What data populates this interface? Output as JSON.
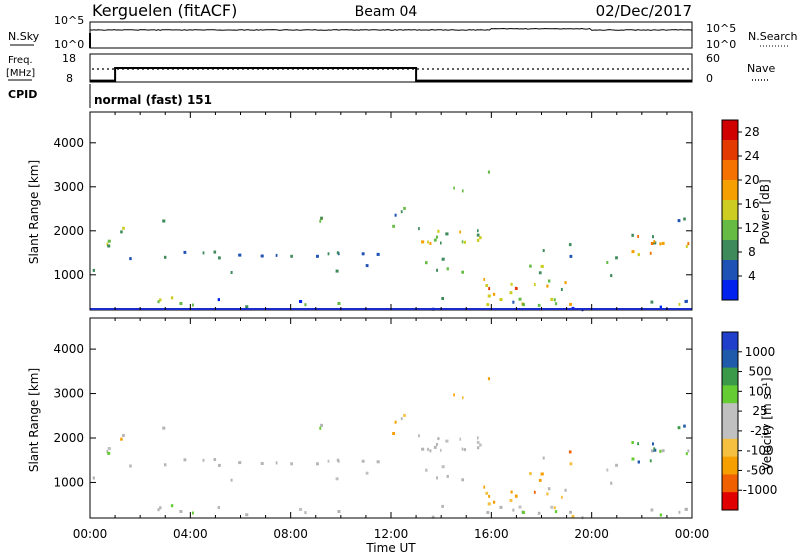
{
  "header": {
    "station": "Kerguelen (fitACF)",
    "beam": "Beam 04",
    "date": "02/Dec/2017"
  },
  "nsky_panel": {
    "left_label": "N.Sky",
    "right_label": "N.Search",
    "left_ticks": [
      "10^5",
      "10^0"
    ],
    "right_ticks": [
      "10^5",
      "10^0"
    ]
  },
  "freq_panel": {
    "left_label_1": "Freq.",
    "left_label_2": "[MHz]",
    "right_label": "Nave",
    "left_ticks": [
      "18",
      "8"
    ],
    "right_ticks": [
      "60",
      "0"
    ]
  },
  "cpid": {
    "label": "CPID",
    "value": "normal (fast) 151"
  },
  "colors": {
    "power_scale": [
      "#0022ee",
      "#1e52b4",
      "#3e8a5a",
      "#66bb44",
      "#cccc22",
      "#f5a000",
      "#f57200",
      "#e23a00",
      "#d00000"
    ],
    "velocity_scale": [
      "#e00000",
      "#f06000",
      "#f5a000",
      "#f5c040",
      "#c0c0c0",
      "#c0c0c0",
      "#66cc33",
      "#3a9a4a",
      "#205aaa",
      "#2040cc"
    ],
    "ground_scatter": "#b4b4b4",
    "nsky_trace": "#000000"
  },
  "chart_data": [
    {
      "type": "line",
      "title": "N.Sky / N.Search",
      "x": [
        "00:00",
        "04:00",
        "08:00",
        "12:00",
        "16:00",
        "20:00",
        "00:00"
      ],
      "series": [
        {
          "name": "N.Sky",
          "values": [
            3000,
            3000,
            3000,
            3000,
            5000,
            3000,
            3000
          ]
        },
        {
          "name": "N.Search",
          "values": [
            0,
            0,
            0,
            0,
            0,
            0,
            0
          ]
        }
      ],
      "ylim": [
        1,
        100000
      ],
      "yscale": "log"
    },
    {
      "type": "line",
      "title": "Freq. / Nave",
      "series": [
        {
          "name": "Freq.",
          "times": [
            "00:00",
            "01:00",
            "01:00",
            "13:00",
            "13:00",
            "00:00"
          ],
          "values": [
            8.5,
            8.5,
            13,
            13,
            8.5,
            8.5
          ]
        },
        {
          "name": "Nave",
          "times": [
            "00:00",
            "00:00"
          ],
          "values": [
            22,
            22
          ]
        }
      ],
      "ylim_left": [
        8,
        18
      ],
      "ylim_right": [
        0,
        60
      ]
    },
    {
      "type": "heatmap",
      "ylabel": "Slant Range [km]",
      "xlabel": "Time UT",
      "x_ticks": [
        "00:00",
        "04:00",
        "08:00",
        "12:00",
        "16:00",
        "20:00",
        "00:00"
      ],
      "y_ticks": [
        1000,
        2000,
        3000,
        4000
      ],
      "ylim": [
        200,
        4700
      ],
      "colorbar": {
        "label": "Power [dB]",
        "ticks": [
          4,
          8,
          12,
          16,
          20,
          24,
          28
        ],
        "range": [
          0,
          30
        ]
      }
    },
    {
      "type": "heatmap",
      "ylabel": "Slant Range [km]",
      "xlabel": "Time UT",
      "x_ticks": [
        "00:00",
        "04:00",
        "08:00",
        "12:00",
        "16:00",
        "20:00",
        "00:00"
      ],
      "y_ticks": [
        1000,
        2000,
        3000,
        4000
      ],
      "ylim": [
        200,
        4700
      ],
      "colorbar": {
        "label": "Velocity [m s⁻¹]",
        "ticks": [
          "1000",
          "500",
          "100",
          "25",
          "-25",
          "-100",
          "-500",
          "-1000"
        ]
      }
    }
  ],
  "axis": {
    "xlabel": "Time UT",
    "x_ticks": [
      "00:00",
      "04:00",
      "08:00",
      "12:00",
      "16:00",
      "20:00",
      "00:00"
    ],
    "ylabel": "Slant Range [km]",
    "y_ticks": [
      "1000",
      "2000",
      "3000",
      "4000"
    ]
  },
  "power_bar": {
    "label": "Power [dB]",
    "ticks": [
      "4",
      "8",
      "12",
      "16",
      "20",
      "24",
      "28"
    ]
  },
  "velocity_bar": {
    "label": "Velocity [m s⁻¹]",
    "ticks": [
      "1000",
      "500",
      "100",
      "25",
      "-25",
      "-100",
      "-500",
      "-1000"
    ]
  }
}
